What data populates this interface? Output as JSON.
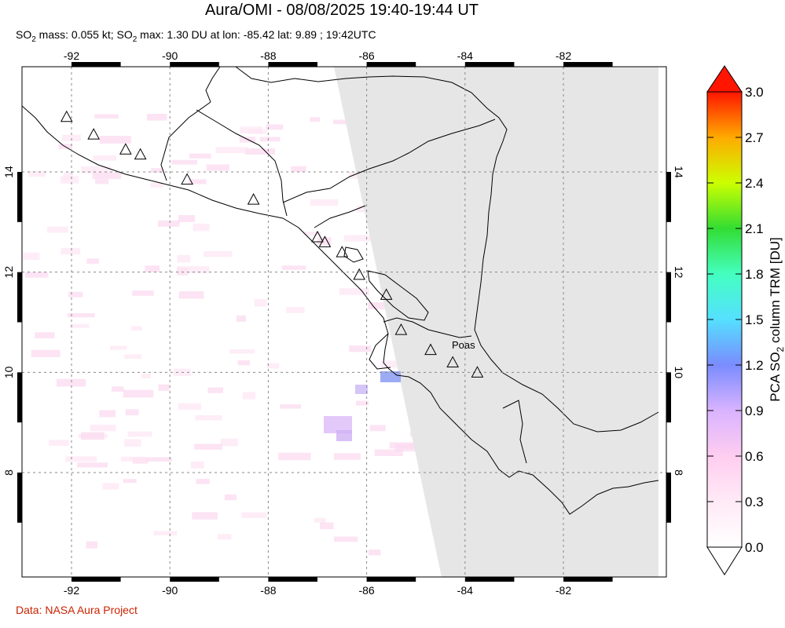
{
  "title": "Aura/OMI - 08/08/2025 19:40-19:44 UT",
  "subtitle": {
    "mass_prefix": "SO",
    "mass_sub": "2",
    "mass_text": " mass: 0.055 kt; SO",
    "max_sub": "2",
    "max_text": " max: 1.30 DU at lon: -85.42 lat: 9.89 ; 19:42UTC"
  },
  "credit": "Data: NASA Aura Project",
  "map": {
    "lon_ticks": [
      "-92",
      "-90",
      "-88",
      "-86",
      "-84",
      "-82"
    ],
    "lat_ticks": [
      "14",
      "12",
      "10",
      "8"
    ],
    "lon_range": [
      -93,
      -80
    ],
    "lat_range": [
      6,
      16
    ],
    "volcano_label": "Poas",
    "no_data_color": "#e6e6e6"
  },
  "colorbar": {
    "label_prefix": "PCA SO",
    "label_sub": "2",
    "label_suffix": " column TRM [DU]",
    "ticks": [
      "3.0",
      "2.7",
      "2.4",
      "2.1",
      "1.8",
      "1.5",
      "1.2",
      "0.9",
      "0.6",
      "0.3",
      "0.0"
    ],
    "colors": [
      "#ff0000",
      "#ff5500",
      "#ffaa00",
      "#ffff00",
      "#aaff33",
      "#22ee33",
      "#33ffaa",
      "#55ffff",
      "#66aaff",
      "#8888ff",
      "#ccaaff",
      "#ffccff",
      "#ffffff"
    ]
  },
  "volcanoes": [
    {
      "lon": -92.1,
      "lat": 15.1
    },
    {
      "lon": -91.55,
      "lat": 14.75
    },
    {
      "lon": -90.9,
      "lat": 14.45
    },
    {
      "lon": -90.6,
      "lat": 14.35
    },
    {
      "lon": -89.65,
      "lat": 13.85
    },
    {
      "lon": -88.3,
      "lat": 13.45
    },
    {
      "lon": -87.0,
      "lat": 12.7
    },
    {
      "lon": -86.85,
      "lat": 12.6
    },
    {
      "lon": -86.5,
      "lat": 12.4
    },
    {
      "lon": -86.15,
      "lat": 11.95
    },
    {
      "lon": -85.6,
      "lat": 11.55
    },
    {
      "lon": -85.3,
      "lat": 10.85
    },
    {
      "lon": -84.7,
      "lat": 10.45
    },
    {
      "lon": -84.25,
      "lat": 10.2
    },
    {
      "lon": -83.75,
      "lat": 10.0
    }
  ]
}
